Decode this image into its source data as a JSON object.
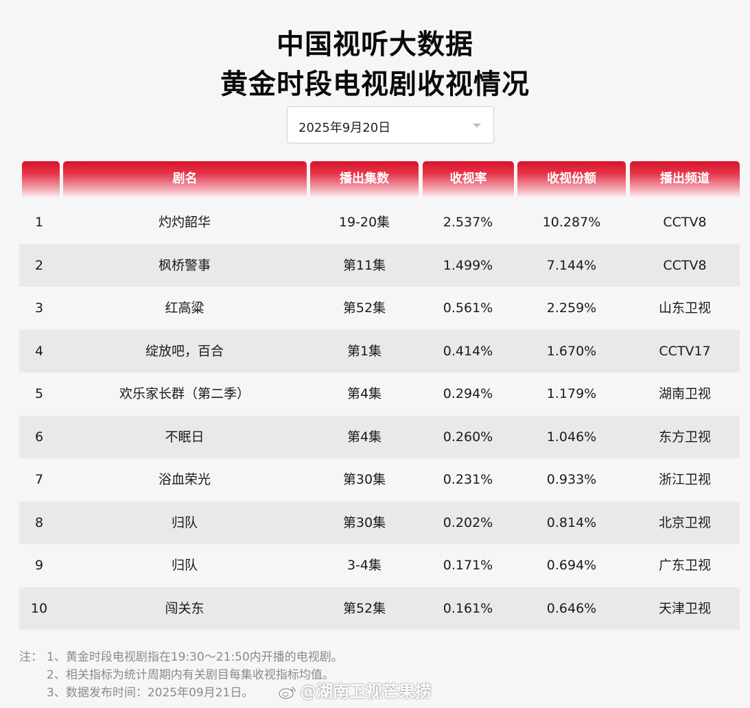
{
  "title": {
    "line1": "中国视听大数据",
    "line2": "黄金时段电视剧收视情况"
  },
  "date_select": {
    "value": "2025年9月20日"
  },
  "table": {
    "headers": [
      "",
      "剧名",
      "播出集数",
      "收视率",
      "收视份额",
      "播出频道"
    ],
    "rows": [
      {
        "rank": "1",
        "name": "灼灼韶华",
        "episodes": "19-20集",
        "rating": "2.537%",
        "share": "10.287%",
        "channel": "CCTV8"
      },
      {
        "rank": "2",
        "name": "枫桥警事",
        "episodes": "第11集",
        "rating": "1.499%",
        "share": "7.144%",
        "channel": "CCTV8"
      },
      {
        "rank": "3",
        "name": "红高粱",
        "episodes": "第52集",
        "rating": "0.561%",
        "share": "2.259%",
        "channel": "山东卫视"
      },
      {
        "rank": "4",
        "name": "绽放吧，百合",
        "episodes": "第1集",
        "rating": "0.414%",
        "share": "1.670%",
        "channel": "CCTV17"
      },
      {
        "rank": "5",
        "name": "欢乐家长群（第二季）",
        "episodes": "第4集",
        "rating": "0.294%",
        "share": "1.179%",
        "channel": "湖南卫视"
      },
      {
        "rank": "6",
        "name": "不眠日",
        "episodes": "第4集",
        "rating": "0.260%",
        "share": "1.046%",
        "channel": "东方卫视"
      },
      {
        "rank": "7",
        "name": "浴血荣光",
        "episodes": "第30集",
        "rating": "0.231%",
        "share": "0.933%",
        "channel": "浙江卫视"
      },
      {
        "rank": "8",
        "name": "归队",
        "episodes": "第30集",
        "rating": "0.202%",
        "share": "0.814%",
        "channel": "北京卫视"
      },
      {
        "rank": "9",
        "name": "归队",
        "episodes": "3-4集",
        "rating": "0.171%",
        "share": "0.694%",
        "channel": "广东卫视"
      },
      {
        "rank": "10",
        "name": "闯关东",
        "episodes": "第52集",
        "rating": "0.161%",
        "share": "0.646%",
        "channel": "天津卫视"
      }
    ]
  },
  "notes": {
    "prefix": "注：",
    "items": [
      "1、黄金时段电视剧指在19:30～21:50内开播的电视剧。",
      "2、相关指标为统计周期内有关剧目每集收视指标均值。",
      "3、数据发布时间：2025年09月21日。"
    ]
  },
  "watermark": {
    "text": "@湖南卫视芒果捞",
    "icon": "weibo-logo-icon"
  },
  "colors": {
    "header_red": "#d8132a",
    "row_alt": "#e9e9e9",
    "background": "#f6f6f6"
  }
}
